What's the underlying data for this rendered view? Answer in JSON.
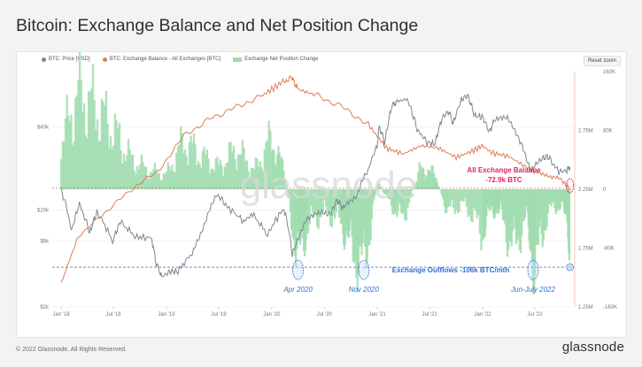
{
  "page": {
    "title": "Bitcoin: Exchange Balance and Net Position Change",
    "footer_copyright": "© 2022 Glassnode. All Rights Reserved.",
    "brand": "glassnode",
    "watermark": "glassnode",
    "reset_zoom": "Reset zoom"
  },
  "colors": {
    "price": "#7f8790",
    "balance": "#e07c56",
    "netflow": "#9fdcae",
    "annotation_red": "#e0245e",
    "annotation_blue": "#2f6fd0"
  },
  "annotations": {
    "balance_label_1": "All Exchange Balance",
    "balance_label_2": "-72.9k BTC",
    "outflow_label": "Exchange Outflows -106k BTC/mth",
    "apr2020": "Apr 2020",
    "nov2020": "Nov 2020",
    "junjuly2022": "Jun-July 2022"
  },
  "chart_data": {
    "type": "line",
    "legend_placement": "top-left",
    "legend": [
      "BTC: Price [USD]",
      "BTC: Exchange Balance - All Exchanges [BTC]",
      "Exchange Net Position Change"
    ],
    "x_ticks": [
      "Jan '18",
      "Jul '18",
      "Jan '19",
      "Jul '19",
      "Jan '20",
      "Jul '20",
      "Jan '21",
      "Jul '21",
      "Jan '22",
      "Jul '22"
    ],
    "y_left_ticks": [
      "$2k",
      "$6k",
      "$10k",
      "$40k"
    ],
    "y_mid_ticks": [
      "1.25M",
      "1.75M",
      "2.25M",
      "2.75M"
    ],
    "y_right_ticks": [
      "-160K",
      "-80K",
      "0",
      "80K",
      "160K"
    ],
    "y_left_scale": "log",
    "y_left_range": [
      2000,
      100000
    ],
    "y_mid_range": [
      1250000,
      3250000
    ],
    "y_right_range": [
      -160000,
      160000
    ],
    "price": {
      "name": "BTC: Price [USD]",
      "dates": [
        "2018-01-01",
        "2018-02-06",
        "2018-03-05",
        "2018-04-10",
        "2018-05-05",
        "2018-06-28",
        "2018-07-25",
        "2018-09-15",
        "2018-11-10",
        "2018-11-25",
        "2018-12-15",
        "2019-01-15",
        "2019-02-10",
        "2019-04-05",
        "2019-05-15",
        "2019-06-26",
        "2019-08-01",
        "2019-09-25",
        "2019-10-26",
        "2019-12-17",
        "2020-02-12",
        "2020-03-12",
        "2020-03-16",
        "2020-04-30",
        "2020-06-15",
        "2020-07-25",
        "2020-08-15",
        "2020-09-05",
        "2020-10-21",
        "2020-11-30",
        "2020-12-31",
        "2021-01-08",
        "2021-01-27",
        "2021-02-21",
        "2021-03-13",
        "2021-04-14",
        "2021-05-19",
        "2021-06-22",
        "2021-07-20",
        "2021-08-15",
        "2021-09-06",
        "2021-09-21",
        "2021-10-20",
        "2021-11-10",
        "2021-12-04",
        "2022-01-01",
        "2022-01-24",
        "2022-02-10",
        "2022-03-28",
        "2022-05-10",
        "2022-06-18",
        "2022-07-30",
        "2022-08-15",
        "2022-09-20",
        "2022-10-20",
        "2022-10-31"
      ],
      "values": [
        14000,
        7000,
        11000,
        6800,
        9700,
        5900,
        8200,
        6400,
        6300,
        4200,
        3300,
        3600,
        3600,
        5000,
        8000,
        13000,
        10500,
        8300,
        9300,
        6600,
        10300,
        4800,
        5000,
        8700,
        9400,
        9600,
        11800,
        10200,
        12800,
        19400,
        29000,
        40000,
        30500,
        57000,
        61000,
        63500,
        38000,
        31000,
        29800,
        47000,
        51500,
        42000,
        63000,
        67500,
        48000,
        47000,
        36500,
        44000,
        47000,
        31000,
        19000,
        23800,
        24300,
        19000,
        19200,
        20500
      ]
    },
    "exchange_balance": {
      "name": "BTC: Exchange Balance - All Exchanges [BTC]",
      "dates": [
        "2018-01-01",
        "2018-03-01",
        "2018-06-01",
        "2018-09-01",
        "2018-12-01",
        "2019-03-01",
        "2019-06-01",
        "2019-09-01",
        "2019-12-01",
        "2020-02-01",
        "2020-03-10",
        "2020-04-01",
        "2020-06-01",
        "2020-09-01",
        "2020-12-01",
        "2021-02-01",
        "2021-04-01",
        "2021-06-01",
        "2021-08-01",
        "2021-10-01",
        "2021-12-01",
        "2022-01-01",
        "2022-02-01",
        "2022-04-01",
        "2022-06-01",
        "2022-07-01",
        "2022-08-15",
        "2022-10-01",
        "2022-10-31"
      ],
      "values": [
        1450000,
        1850000,
        2050000,
        2250000,
        2400000,
        2700000,
        2850000,
        2950000,
        3050000,
        3150000,
        3200000,
        3100000,
        3050000,
        2950000,
        2800000,
        2600000,
        2550000,
        2620000,
        2600000,
        2520000,
        2580000,
        2620000,
        2560000,
        2530000,
        2440000,
        2400000,
        2370000,
        2330000,
        2250000
      ]
    },
    "net_position_change": {
      "name": "Exchange Net Position Change",
      "dates": [
        "2018-01-01",
        "2018-03-01",
        "2018-05-01",
        "2018-07-01",
        "2018-09-01",
        "2018-11-01",
        "2019-01-01",
        "2019-03-01",
        "2019-05-01",
        "2019-07-01",
        "2019-09-01",
        "2019-11-01",
        "2020-01-01",
        "2020-02-15",
        "2020-04-01",
        "2020-05-01",
        "2020-07-01",
        "2020-09-01",
        "2020-10-01",
        "2020-11-15",
        "2021-01-01",
        "2021-02-15",
        "2021-04-01",
        "2021-06-01",
        "2021-07-20",
        "2021-09-01",
        "2021-11-01",
        "2022-01-01",
        "2022-02-01",
        "2022-03-01",
        "2022-04-15",
        "2022-06-01",
        "2022-07-01",
        "2022-08-15",
        "2022-10-01",
        "2022-10-31"
      ],
      "values": [
        60000,
        130000,
        110000,
        80000,
        40000,
        25000,
        20000,
        65000,
        45000,
        30000,
        55000,
        25000,
        70000,
        20000,
        -100000,
        -50000,
        -30000,
        -45000,
        -80000,
        -106000,
        10000,
        -20000,
        -40000,
        30000,
        20000,
        -30000,
        -20000,
        -60000,
        -25000,
        -30000,
        -80000,
        -40000,
        -106000,
        -30000,
        -20000,
        -70000
      ]
    },
    "outflow_reference": -106000,
    "balance_reference": 2260000
  }
}
